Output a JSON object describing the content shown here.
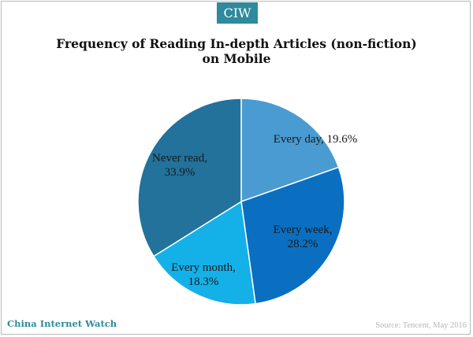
{
  "brand": {
    "badge": "CIW",
    "footer": "China Internet Watch"
  },
  "source": "Source: Tencent, May 2016",
  "colors": {
    "every_day": "#4a9bd1",
    "every_week": "#0a6fc1",
    "every_month": "#14b0e8",
    "never_read": "#22729b",
    "brand": "#2e8a9c"
  },
  "chart_data": {
    "type": "pie",
    "title": "Frequency of Reading In-depth Articles (non-fiction) on Mobile",
    "title_lines": [
      "Frequency of Reading In-depth Articles (non-fiction)",
      "on Mobile"
    ],
    "slices": [
      {
        "label": "Every day",
        "value": 19.6,
        "text": "Every day, 19.6%",
        "lines": [
          "Every day, 19.6%"
        ]
      },
      {
        "label": "Every week",
        "value": 28.2,
        "text": "Every week, 28.2%",
        "lines": [
          "Every week,",
          "28.2%"
        ]
      },
      {
        "label": "Every month",
        "value": 18.3,
        "text": "Every month, 18.3%",
        "lines": [
          "Every month,",
          "18.3%"
        ]
      },
      {
        "label": "Never read",
        "value": 33.9,
        "text": "Never read, 33.9%",
        "lines": [
          "Never read,",
          "33.9%"
        ]
      }
    ]
  }
}
